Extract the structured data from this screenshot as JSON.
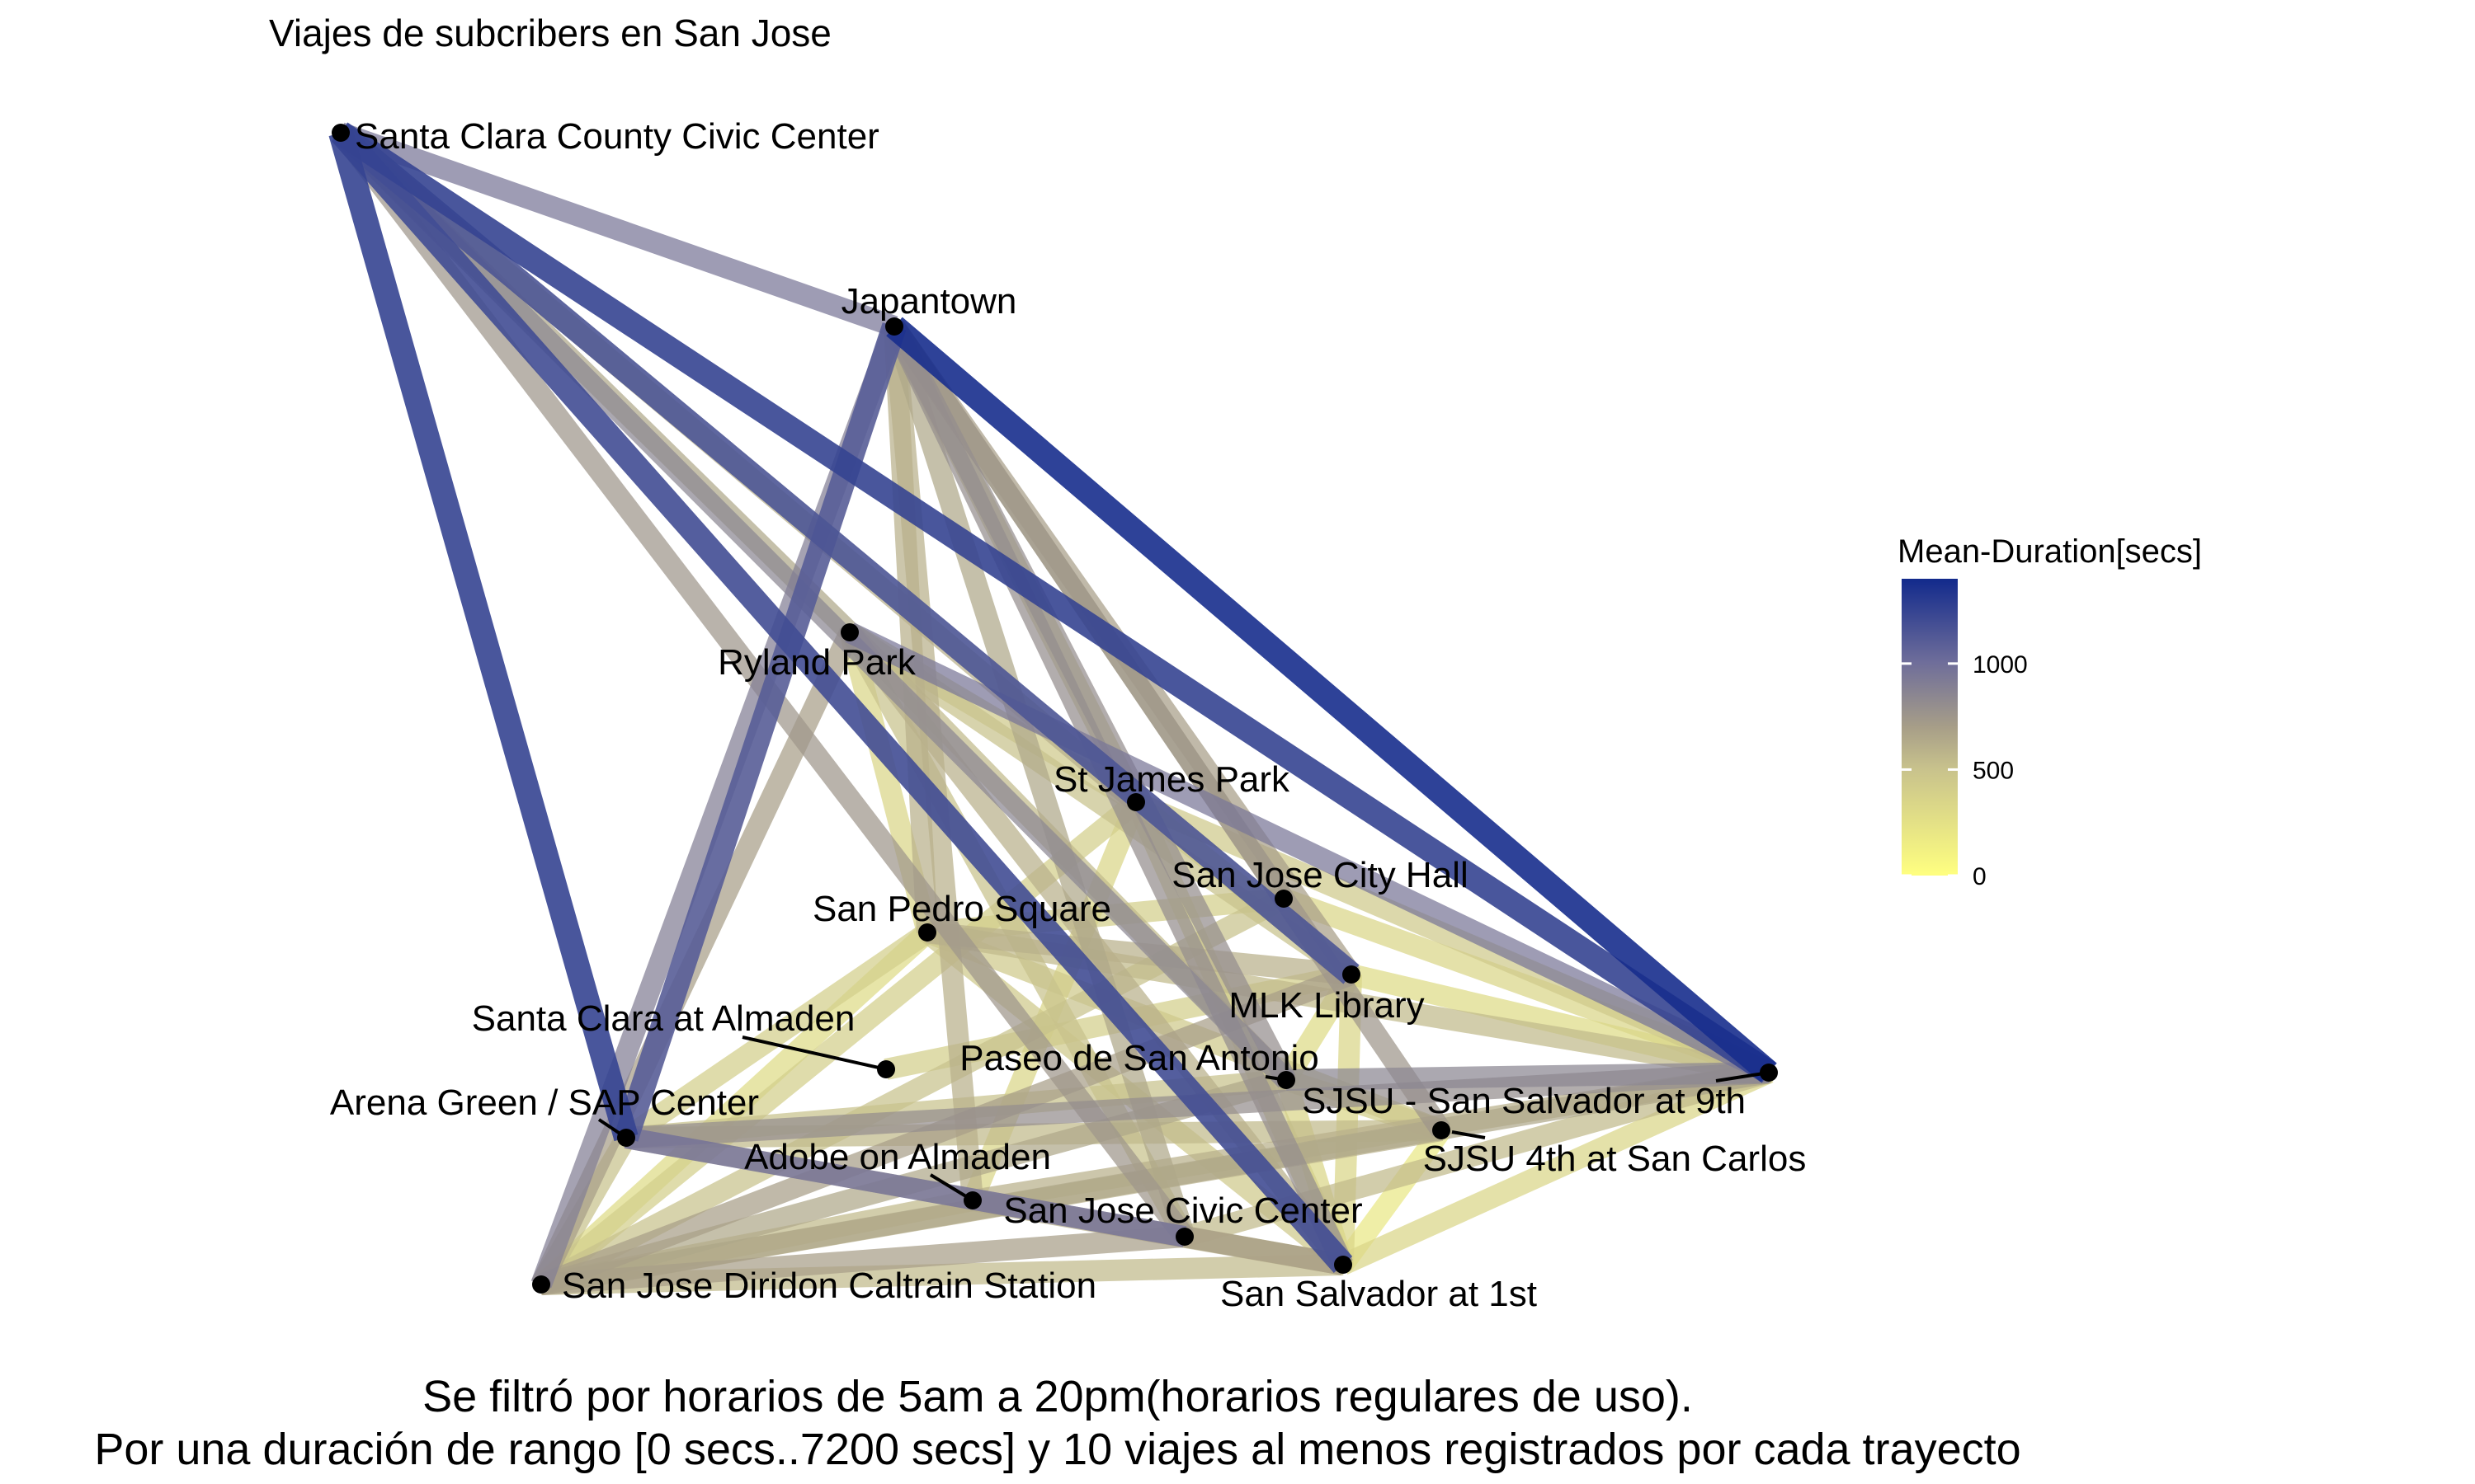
{
  "chart_data": {
    "type": "network",
    "title": "Viajes de subcribers en San Jose",
    "caption": [
      "Se filtró por horarios de 5am a 20pm(horarios regulares de uso).",
      "Por una duración de rango [0 secs..7200 secs] y 10 viajes al menos registrados por cada trayecto"
    ],
    "legend": {
      "title": "Mean-Duration[secs]",
      "ticks": [
        0,
        500,
        1000
      ],
      "range": [
        0,
        1400
      ],
      "color_low": "#FFFF80",
      "color_high": "#122A8C"
    },
    "nodes": [
      {
        "id": "sccc",
        "label": "Santa Clara County Civic Center"
      },
      {
        "id": "japantown",
        "label": "Japantown"
      },
      {
        "id": "ryland",
        "label": "Ryland Park"
      },
      {
        "id": "stjames",
        "label": "St James Park"
      },
      {
        "id": "cityhall",
        "label": "San Jose City Hall"
      },
      {
        "id": "sanpedro",
        "label": "San Pedro Square"
      },
      {
        "id": "mlk",
        "label": "MLK Library"
      },
      {
        "id": "scalmaden",
        "label": "Santa Clara at Almaden"
      },
      {
        "id": "paseo",
        "label": "Paseo de San Antonio"
      },
      {
        "id": "sjsu9",
        "label": "SJSU - San Salvador at 9th"
      },
      {
        "id": "arena",
        "label": "Arena Green / SAP Center"
      },
      {
        "id": "adobe",
        "label": "Adobe on Almaden"
      },
      {
        "id": "sjsu4",
        "label": "SJSU 4th at San Carlos"
      },
      {
        "id": "civic",
        "label": "San Jose Civic Center"
      },
      {
        "id": "diridon",
        "label": "San Jose Diridon Caltrain Station"
      },
      {
        "id": "salvador1",
        "label": "San Salvador at 1st"
      }
    ],
    "edges": [
      {
        "from": "sccc",
        "to": "sjsu9",
        "value": 1250
      },
      {
        "from": "sccc",
        "to": "salvador1",
        "value": 1200
      },
      {
        "from": "sccc",
        "to": "mlk",
        "value": 1150
      },
      {
        "from": "sccc",
        "to": "arena",
        "value": 1250
      },
      {
        "from": "sccc",
        "to": "japantown",
        "value": 950
      },
      {
        "from": "sccc",
        "to": "paseo",
        "value": 850
      },
      {
        "from": "sccc",
        "to": "ryland",
        "value": 650
      },
      {
        "from": "sccc",
        "to": "stjames",
        "value": 600
      },
      {
        "from": "sccc",
        "to": "civic",
        "value": 750
      },
      {
        "from": "japantown",
        "to": "sjsu9",
        "value": 1380
      },
      {
        "from": "japantown",
        "to": "arena",
        "value": 1100
      },
      {
        "from": "japantown",
        "to": "diridon",
        "value": 900
      },
      {
        "from": "japantown",
        "to": "sanpedro",
        "value": 600
      },
      {
        "from": "japantown",
        "to": "stjames",
        "value": 500
      },
      {
        "from": "japantown",
        "to": "cityhall",
        "value": 650
      },
      {
        "from": "japantown",
        "to": "mlk",
        "value": 700
      },
      {
        "from": "japantown",
        "to": "sjsu4",
        "value": 750
      },
      {
        "from": "japantown",
        "to": "salvador1",
        "value": 800
      },
      {
        "from": "japantown",
        "to": "paseo",
        "value": 800
      },
      {
        "from": "japantown",
        "to": "civic",
        "value": 650
      },
      {
        "from": "japantown",
        "to": "adobe",
        "value": 600
      },
      {
        "from": "ryland",
        "to": "diridon",
        "value": 700
      },
      {
        "from": "ryland",
        "to": "sjsu9",
        "value": 950
      },
      {
        "from": "ryland",
        "to": "stjames",
        "value": 450
      },
      {
        "from": "ryland",
        "to": "sanpedro",
        "value": 350
      },
      {
        "from": "ryland",
        "to": "paseo",
        "value": 550
      },
      {
        "from": "ryland",
        "to": "mlk",
        "value": 500
      },
      {
        "from": "ryland",
        "to": "salvador1",
        "value": 600
      },
      {
        "from": "ryland",
        "to": "civic",
        "value": 500
      },
      {
        "from": "stjames",
        "to": "diridon",
        "value": 400
      },
      {
        "from": "stjames",
        "to": "sjsu9",
        "value": 450
      },
      {
        "from": "stjames",
        "to": "mlk",
        "value": 300
      },
      {
        "from": "stjames",
        "to": "adobe",
        "value": 350
      },
      {
        "from": "stjames",
        "to": "salvador1",
        "value": 400
      },
      {
        "from": "cityhall",
        "to": "diridon",
        "value": 500
      },
      {
        "from": "cityhall",
        "to": "sanpedro",
        "value": 400
      },
      {
        "from": "cityhall",
        "to": "sjsu9",
        "value": 350
      },
      {
        "from": "sanpedro",
        "to": "diridon",
        "value": 300
      },
      {
        "from": "sanpedro",
        "to": "sjsu9",
        "value": 550
      },
      {
        "from": "sanpedro",
        "to": "mlk",
        "value": 600
      },
      {
        "from": "sanpedro",
        "to": "salvador1",
        "value": 450
      },
      {
        "from": "sanpedro",
        "to": "sjsu4",
        "value": 450
      },
      {
        "from": "sanpedro",
        "to": "arena",
        "value": 400
      },
      {
        "from": "mlk",
        "to": "diridon",
        "value": 700
      },
      {
        "from": "mlk",
        "to": "sjsu9",
        "value": 300
      },
      {
        "from": "mlk",
        "to": "salvador1",
        "value": 350
      },
      {
        "from": "mlk",
        "to": "paseo",
        "value": 300
      },
      {
        "from": "mlk",
        "to": "scalmaden",
        "value": 400
      },
      {
        "from": "paseo",
        "to": "sjsu9",
        "value": 850
      },
      {
        "from": "paseo",
        "to": "diridon",
        "value": 650
      },
      {
        "from": "paseo",
        "to": "arena",
        "value": 500
      },
      {
        "from": "paseo",
        "to": "salvador1",
        "value": 350
      },
      {
        "from": "paseo",
        "to": "sjsu4",
        "value": 400
      },
      {
        "from": "sjsu9",
        "to": "diridon",
        "value": 650
      },
      {
        "from": "sjsu9",
        "to": "arena",
        "value": 800
      },
      {
        "from": "sjsu9",
        "to": "civic",
        "value": 550
      },
      {
        "from": "sjsu9",
        "to": "salvador1",
        "value": 350
      },
      {
        "from": "sjsu9",
        "to": "adobe",
        "value": 600
      },
      {
        "from": "sjsu4",
        "to": "diridon",
        "value": 600
      },
      {
        "from": "sjsu4",
        "to": "salvador1",
        "value": 200
      },
      {
        "from": "sjsu4",
        "to": "arena",
        "value": 550
      },
      {
        "from": "arena",
        "to": "diridon",
        "value": 500
      },
      {
        "from": "arena",
        "to": "civic",
        "value": 1000
      },
      {
        "from": "arena",
        "to": "salvador1",
        "value": 700
      },
      {
        "from": "adobe",
        "to": "diridon",
        "value": 550
      },
      {
        "from": "adobe",
        "to": "salvador1",
        "value": 600
      },
      {
        "from": "civic",
        "to": "diridon",
        "value": 700
      },
      {
        "from": "civic",
        "to": "salvador1",
        "value": 450
      },
      {
        "from": "diridon",
        "to": "salvador1",
        "value": 550
      }
    ]
  }
}
